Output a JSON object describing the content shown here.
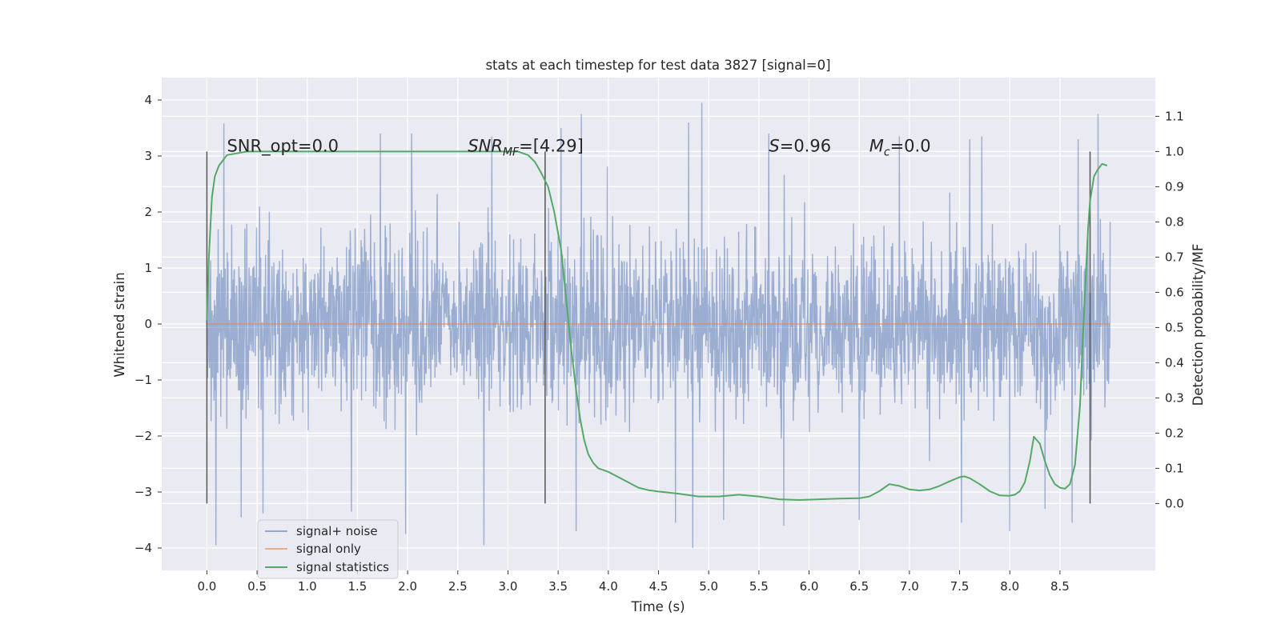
{
  "chart_data": {
    "type": "line",
    "title": "stats at each timestep for test data 3827 [signal=0]",
    "xlabel": "Time (s)",
    "ylabel": "Whitened strain",
    "y2label": "Detection probability/MF",
    "xlim": [
      -0.45,
      9.45
    ],
    "ylim": [
      -4.4,
      4.4
    ],
    "y2lim": [
      -0.19,
      1.21
    ],
    "x_ticks": [
      "0.0",
      "0.5",
      "1.0",
      "1.5",
      "2.0",
      "2.5",
      "3.0",
      "3.5",
      "4.0",
      "4.5",
      "5.0",
      "5.5",
      "6.0",
      "6.5",
      "7.0",
      "7.5",
      "8.0",
      "8.5"
    ],
    "y_ticks": [
      "−4",
      "−3",
      "−2",
      "−1",
      "0",
      "1",
      "2",
      "3",
      "4"
    ],
    "y2_ticks": [
      "0.0",
      "0.1",
      "0.2",
      "0.3",
      "0.4",
      "0.5",
      "0.6",
      "0.7",
      "0.8",
      "0.9",
      "1.0",
      "1.1"
    ],
    "grid": true,
    "legend_position": "lower-left",
    "series": [
      {
        "name": "signal+ noise",
        "color": "#4c72b0",
        "axis": "left",
        "x_range": [
          0.0,
          9.0
        ],
        "envelope": {
          "typical_amplitude": 2.0,
          "peaks": [
            {
              "x": 0.17,
              "y": 3.58
            },
            {
              "x": 0.09,
              "y": -3.95
            },
            {
              "x": 0.34,
              "y": -3.45
            },
            {
              "x": 0.56,
              "y": -3.38
            },
            {
              "x": 1.44,
              "y": -3.35
            },
            {
              "x": 1.73,
              "y": 3.4
            },
            {
              "x": 1.98,
              "y": -3.75
            },
            {
              "x": 2.04,
              "y": 3.4
            },
            {
              "x": 2.76,
              "y": -3.95
            },
            {
              "x": 2.84,
              "y": 3.35
            },
            {
              "x": 3.53,
              "y": 3.5
            },
            {
              "x": 3.68,
              "y": -3.7
            },
            {
              "x": 3.73,
              "y": 3.75
            },
            {
              "x": 4.67,
              "y": -3.55
            },
            {
              "x": 4.8,
              "y": 3.6
            },
            {
              "x": 4.93,
              "y": 3.95
            },
            {
              "x": 4.84,
              "y": -4.0
            },
            {
              "x": 5.15,
              "y": -3.5
            },
            {
              "x": 5.6,
              "y": 3.4
            },
            {
              "x": 5.75,
              "y": -3.6
            },
            {
              "x": 6.5,
              "y": -3.5
            },
            {
              "x": 6.9,
              "y": 3.35
            },
            {
              "x": 7.52,
              "y": -3.55
            },
            {
              "x": 7.6,
              "y": 3.3
            },
            {
              "x": 7.72,
              "y": 3.35
            },
            {
              "x": 8.0,
              "y": -3.7
            },
            {
              "x": 8.35,
              "y": -3.3
            },
            {
              "x": 8.62,
              "y": -3.55
            },
            {
              "x": 8.68,
              "y": 3.3
            },
            {
              "x": 8.88,
              "y": 3.75
            }
          ]
        }
      },
      {
        "name": "signal only",
        "color": "#dd8452",
        "axis": "left",
        "x": [
          0.0,
          9.0
        ],
        "y": [
          0.0,
          0.0
        ]
      },
      {
        "name": "signal statistics",
        "color": "#55a868",
        "axis": "right",
        "x": [
          0.0,
          0.02,
          0.05,
          0.08,
          0.12,
          0.2,
          0.4,
          1.0,
          2.0,
          2.5,
          3.0,
          3.1,
          3.2,
          3.27,
          3.33,
          3.4,
          3.46,
          3.53,
          3.58,
          3.63,
          3.68,
          3.72,
          3.76,
          3.8,
          3.85,
          3.9,
          3.95,
          4.0,
          4.1,
          4.2,
          4.3,
          4.4,
          4.5,
          4.7,
          4.9,
          5.1,
          5.3,
          5.5,
          5.7,
          5.9,
          6.1,
          6.3,
          6.5,
          6.6,
          6.7,
          6.8,
          6.9,
          7.0,
          7.1,
          7.2,
          7.3,
          7.4,
          7.5,
          7.55,
          7.6,
          7.7,
          7.8,
          7.9,
          8.0,
          8.05,
          8.1,
          8.15,
          8.2,
          8.24,
          8.3,
          8.35,
          8.4,
          8.45,
          8.5,
          8.55,
          8.6,
          8.65,
          8.7,
          8.73,
          8.76,
          8.78,
          8.8,
          8.84,
          8.88,
          8.92,
          8.97
        ],
        "y": [
          0.52,
          0.7,
          0.87,
          0.93,
          0.96,
          0.99,
          1.0,
          1.0,
          1.0,
          1.0,
          1.0,
          1.0,
          0.99,
          0.97,
          0.94,
          0.9,
          0.83,
          0.72,
          0.58,
          0.44,
          0.32,
          0.24,
          0.18,
          0.14,
          0.115,
          0.1,
          0.095,
          0.09,
          0.075,
          0.06,
          0.045,
          0.038,
          0.034,
          0.028,
          0.02,
          0.02,
          0.025,
          0.02,
          0.012,
          0.01,
          0.012,
          0.014,
          0.015,
          0.02,
          0.035,
          0.055,
          0.05,
          0.04,
          0.037,
          0.04,
          0.05,
          0.063,
          0.075,
          0.077,
          0.072,
          0.055,
          0.035,
          0.023,
          0.022,
          0.025,
          0.035,
          0.06,
          0.12,
          0.19,
          0.17,
          0.12,
          0.08,
          0.055,
          0.045,
          0.042,
          0.055,
          0.11,
          0.28,
          0.48,
          0.66,
          0.78,
          0.86,
          0.93,
          0.95,
          0.965,
          0.96
        ]
      }
    ],
    "vlines_x": [
      0.0,
      3.37,
      8.8
    ],
    "vlines_y2_range": [
      -0.0,
      1.0
    ],
    "annotations": [
      {
        "id": "snr-opt",
        "text": "SNR_opt=0.0",
        "x": 0.2,
        "y2": 1.0
      },
      {
        "id": "snr-mf",
        "italic": "SNR",
        "sub": "MF",
        "rest": "=[4.29]",
        "x": 2.6,
        "y2": 1.0
      },
      {
        "id": "s-stat",
        "italic": "S",
        "rest": "=0.96",
        "x": 5.6,
        "y2": 1.0
      },
      {
        "id": "mc",
        "italic": "M",
        "sub": "c",
        "rest": "=0.0",
        "x": 6.6,
        "y2": 1.0
      }
    ]
  }
}
